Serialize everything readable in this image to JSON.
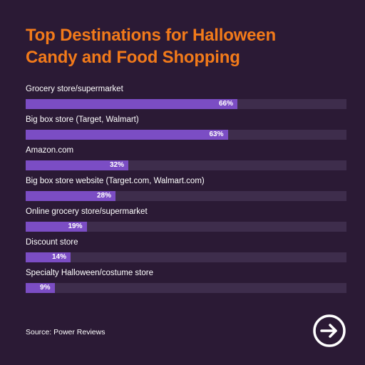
{
  "colors": {
    "background": "#2b1a35",
    "title": "#f27a1a",
    "bar": "#7b4dc4",
    "track": "#3e2d4c"
  },
  "icons": {
    "next": "arrow-right-circle-icon"
  },
  "source": "Source: Power Reviews",
  "chart_data": {
    "type": "bar",
    "orientation": "horizontal",
    "title_lines": [
      "Top Destinations for Halloween",
      "Candy and Food Shopping"
    ],
    "categories": [
      "Grocery store/supermarket",
      "Big box store (Target, Walmart)",
      "Amazon.com",
      "Big box store website (Target.com, Walmart.com)",
      "Online grocery store/supermarket",
      "Discount store",
      "Specialty Halloween/costume store"
    ],
    "values": [
      66,
      63,
      32,
      28,
      19,
      14,
      9
    ],
    "value_labels": [
      "66%",
      "63%",
      "32%",
      "28%",
      "19%",
      "14%",
      "9%"
    ],
    "xlim": [
      0,
      100
    ],
    "grid": false,
    "legend": "none"
  }
}
